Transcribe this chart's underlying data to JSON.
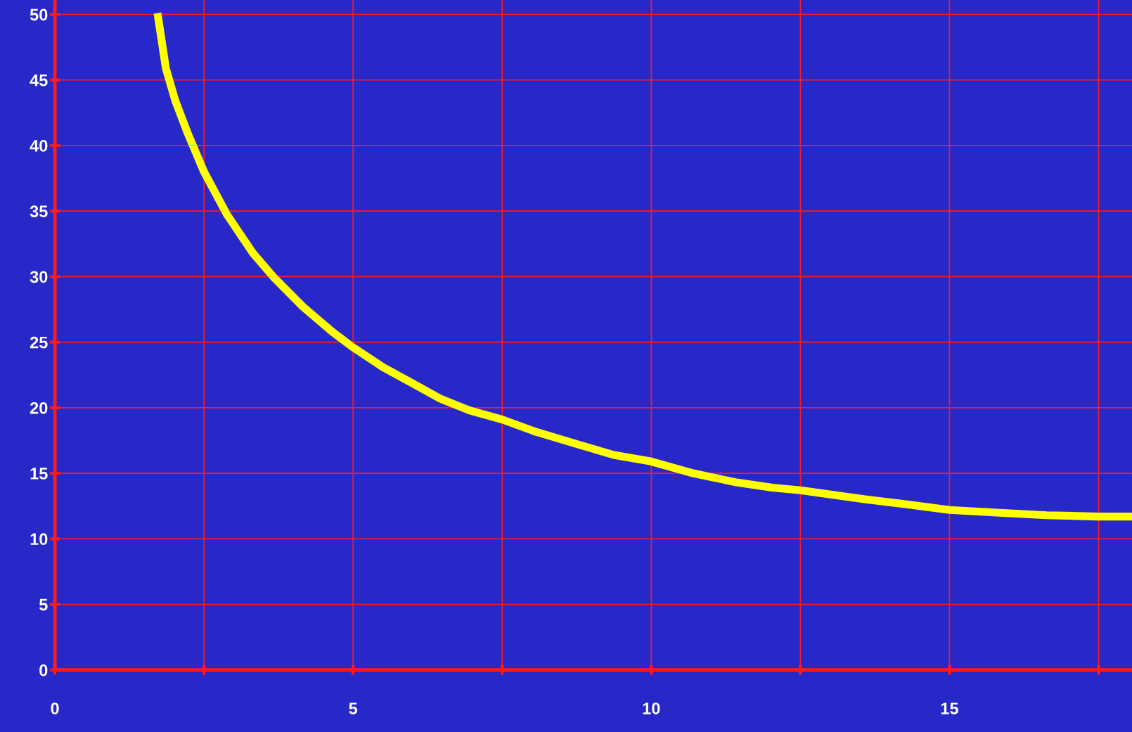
{
  "chart_data": {
    "type": "line",
    "x": [
      1.72,
      1.86,
      2.02,
      2.23,
      2.5,
      2.89,
      3.32,
      3.68,
      4.16,
      4.65,
      5,
      5.5,
      5.98,
      6.46,
      6.95,
      7.5,
      8.04,
      8.77,
      9.37,
      10,
      10.7,
      11.43,
      12.03,
      12.5,
      13.6,
      14.33,
      15,
      15.79,
      16.63,
      17.5,
      18.06
    ],
    "series": [
      {
        "color": "#ffff00",
        "values": [
          50.1,
          45.9,
          43.4,
          40.9,
          38,
          34.7,
          31.8,
          29.9,
          27.7,
          25.8,
          24.6,
          23.1,
          21.9,
          20.7,
          19.8,
          19.1,
          18.2,
          17.2,
          16.4,
          15.9,
          15.0,
          14.3,
          13.9,
          13.7,
          13.0,
          12.6,
          12.2,
          12.0,
          11.8,
          11.7,
          11.7
        ]
      }
    ],
    "xlim": [
      0,
      18.06
    ],
    "ylim": [
      0,
      51.1
    ],
    "xticks": [
      0,
      {
        "value": 2.5,
        "label": null
      },
      5,
      {
        "value": 7.5,
        "label": null
      },
      10,
      {
        "value": 12.5,
        "label": null
      },
      15,
      {
        "value": 17.5,
        "label": null
      }
    ],
    "yticks": [
      0,
      5,
      10,
      15,
      20,
      25,
      30,
      35,
      40,
      45,
      50
    ],
    "grid": true,
    "marker": "none",
    "line_style": "solid"
  }
}
